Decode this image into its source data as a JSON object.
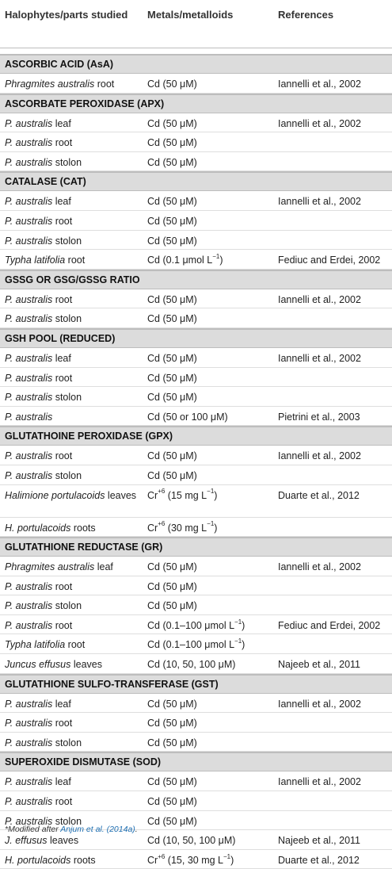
{
  "header": {
    "col1": "Halophytes/parts studied",
    "col2": "Metals/metalloids",
    "col3": "References"
  },
  "sections": [
    {
      "title": "ASCORBIC ACID (AsA)",
      "rows": [
        {
          "plant": "Phragmites australis",
          "part": " root",
          "metal": "Cd (50 μM)",
          "ref": "Iannelli et al., 2002"
        }
      ]
    },
    {
      "title": "ASCORBATE PEROXIDASE (APX)",
      "rows": [
        {
          "plant": "P. australis",
          "part": " leaf",
          "metal": "Cd (50 μM)",
          "ref": "Iannelli et al., 2002"
        },
        {
          "plant": "P. australis",
          "part": " root",
          "metal": "Cd (50 μM)",
          "ref": ""
        },
        {
          "plant": "P. australis",
          "part": " stolon",
          "metal": "Cd (50 μM)",
          "ref": ""
        }
      ]
    },
    {
      "title": "CATALASE (CAT)",
      "rows": [
        {
          "plant": "P. australis",
          "part": " leaf",
          "metal": "Cd (50 μM)",
          "ref": "Iannelli et al., 2002"
        },
        {
          "plant": "P. australis",
          "part": " root",
          "metal": "Cd (50 μM)",
          "ref": ""
        },
        {
          "plant": "P. australis",
          "part": " stolon",
          "metal": "Cd (50 μM)",
          "ref": ""
        },
        {
          "plant": "Typha latifolia",
          "part": " root",
          "metal": "Cd (0.1 μmol L",
          "sup": "−1",
          "metal_end": ")",
          "ref": "Fediuc and Erdei, 2002"
        }
      ]
    },
    {
      "title": "GSSG OR GSG/GSSG RATIO",
      "rows": [
        {
          "plant": "P. australis",
          "part": " root",
          "metal": "Cd (50 μM)",
          "ref": "Iannelli et al., 2002"
        },
        {
          "plant": "P. australis",
          "part": " stolon",
          "metal": "Cd (50 μM)",
          "ref": ""
        }
      ]
    },
    {
      "title": "GSH POOL (REDUCED)",
      "rows": [
        {
          "plant": "P. australis",
          "part": " leaf",
          "metal": "Cd (50 μM)",
          "ref": "Iannelli et al., 2002"
        },
        {
          "plant": "P. australis",
          "part": " root",
          "metal": "Cd (50 μM)",
          "ref": ""
        },
        {
          "plant": "P. australis",
          "part": " stolon",
          "metal": "Cd (50 μM)",
          "ref": ""
        },
        {
          "plant": "P. australis",
          "part": "",
          "metal": "Cd (50 or 100 μM)",
          "ref": "Pietrini et al., 2003"
        }
      ]
    },
    {
      "title": "GLUTATHOINE PEROXIDASE (GPX)",
      "rows": [
        {
          "plant": "P. australis",
          "part": " root",
          "metal": "Cd (50 μM)",
          "ref": "Iannelli et al., 2002"
        },
        {
          "plant": "P. australis",
          "part": " stolon",
          "metal": "Cd (50 μM)",
          "ref": ""
        },
        {
          "plant": "Halimione portulacoids",
          "part": " leaves",
          "metal": "Cr",
          "sup_pre": "+6",
          "metal_after": " (15 mg L",
          "sup": "−1",
          "metal_end": ")",
          "ref": "Duarte et al., 2012",
          "tall": true
        },
        {
          "plant": "H. portulacoids",
          "part": " roots",
          "metal": "Cr",
          "sup_pre": "+6",
          "metal_after": " (30 mg L",
          "sup": "−1",
          "metal_end": ")",
          "ref": ""
        }
      ]
    },
    {
      "title": "GLUTATHIONE REDUCTASE (GR)",
      "rows": [
        {
          "plant": "Phragmites australis",
          "part": " leaf",
          "metal": "Cd (50 μM)",
          "ref": "Iannelli et al., 2002"
        },
        {
          "plant": "P. australis",
          "part": " root",
          "metal": "Cd (50 μM)",
          "ref": ""
        },
        {
          "plant": "P. australis",
          "part": " stolon",
          "metal": "Cd (50 μM)",
          "ref": ""
        },
        {
          "plant": "P. australis",
          "part": " root",
          "metal": "Cd (0.1–100 μmol L",
          "sup": "−1",
          "metal_end": ")",
          "ref": "Fediuc and Erdei, 2002"
        },
        {
          "plant": "Typha latifolia",
          "part": " root",
          "metal": "Cd (0.1–100 μmol L",
          "sup": "−1",
          "metal_end": ")",
          "ref": ""
        },
        {
          "plant": "Juncus effusus",
          "part": " leaves",
          "metal": "Cd (10, 50, 100 μM)",
          "ref": "Najeeb et al., 2011"
        }
      ]
    },
    {
      "title": "GLUTATHIONE SULFO-TRANSFERASE (GST)",
      "rows": [
        {
          "plant": "P. australis",
          "part": " leaf",
          "metal": "Cd (50 μM)",
          "ref": "Iannelli et al., 2002"
        },
        {
          "plant": "P. australis",
          "part": " root",
          "metal": "Cd (50 μM)",
          "ref": ""
        },
        {
          "plant": "P. australis",
          "part": " stolon",
          "metal": "Cd (50 μM)",
          "ref": ""
        }
      ]
    },
    {
      "title": "SUPEROXIDE DISMUTASE (SOD)",
      "rows": [
        {
          "plant": "P. australis",
          "part": " leaf",
          "metal": "Cd (50 μM)",
          "ref": "Iannelli et al., 2002"
        },
        {
          "plant": "P. australis",
          "part": " root",
          "metal": "Cd (50 μM)",
          "ref": ""
        },
        {
          "plant": "P. australis",
          "part": " stolon",
          "metal": "Cd (50 μM)",
          "ref": ""
        },
        {
          "plant": "J. effusus",
          "part": " leaves",
          "metal": "Cd (10, 50, 100 μM)",
          "ref": "Najeeb et al., 2011"
        },
        {
          "plant": "H. portulacoids",
          "part": " roots",
          "metal": "Cr",
          "sup_pre": "+6",
          "metal_after": " (15, 30 mg L",
          "sup": "−1",
          "metal_end": ")",
          "ref": "Duarte et al., 2012"
        }
      ]
    }
  ],
  "footnote": {
    "prefix": "*Modified after ",
    "link": "Anjum et al. (2014a)",
    "suffix": "."
  }
}
